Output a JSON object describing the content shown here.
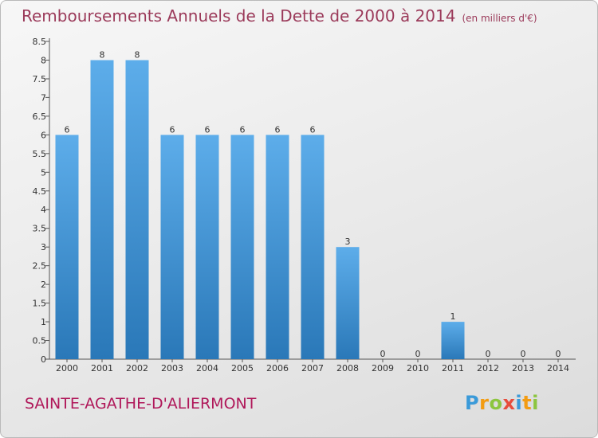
{
  "chart_data": {
    "type": "bar",
    "title": "Remboursements Annuels de la Dette de 2000 à 2014",
    "subtitle": "(en milliers d'€)",
    "categories": [
      "2000",
      "2001",
      "2002",
      "2003",
      "2004",
      "2005",
      "2006",
      "2007",
      "2008",
      "2009",
      "2010",
      "2011",
      "2012",
      "2013",
      "2014"
    ],
    "values": [
      6,
      8,
      8,
      6,
      6,
      6,
      6,
      6,
      3,
      0,
      0,
      1,
      0,
      0,
      0
    ],
    "y_ticks": [
      "0",
      "0.5",
      "1",
      "1.5",
      "2",
      "2.5",
      "3",
      "3.5",
      "4",
      "4.5",
      "5",
      "5.5",
      "6",
      "6.5",
      "7",
      "7.5",
      "8",
      "8.5"
    ],
    "ylim": [
      0,
      8.5
    ],
    "grid": false,
    "legend": "none",
    "bar_color_top": "#5dadea",
    "bar_color_bottom": "#2a78b8",
    "title_color": "#9b3a5a"
  },
  "commune": "SAINTE-AGATHE-D'ALIERMONT",
  "logo": {
    "letters": [
      "P",
      "r",
      "o",
      "x",
      "i",
      "t",
      "i"
    ],
    "colors": [
      "#3a9ad9",
      "#f39c12",
      "#8cc63f",
      "#e74c3c",
      "#3a9ad9",
      "#f39c12",
      "#8cc63f"
    ]
  }
}
